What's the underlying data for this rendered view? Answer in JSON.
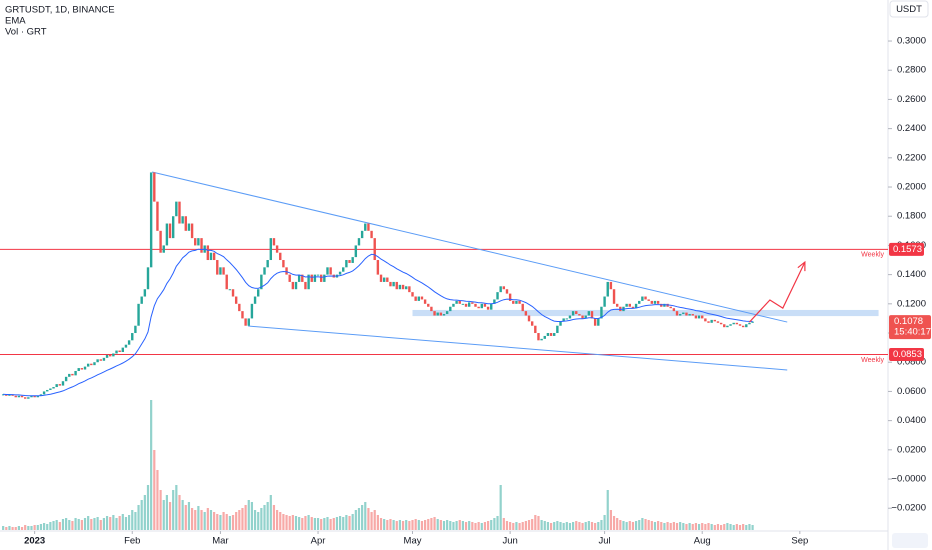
{
  "header": {
    "symbol": "GRTUSDT, 1D, BINANCE",
    "indicators": [
      "EMA",
      "Vol · GRT"
    ]
  },
  "chart_data": {
    "type": "candlestick",
    "currency": "USDT",
    "close": [
      0.058,
      0.057,
      0.058,
      0.057,
      0.056,
      0.057,
      0.056,
      0.055,
      0.056,
      0.057,
      0.056,
      0.057,
      0.058,
      0.06,
      0.061,
      0.062,
      0.063,
      0.065,
      0.064,
      0.067,
      0.07,
      0.072,
      0.071,
      0.074,
      0.076,
      0.075,
      0.077,
      0.079,
      0.078,
      0.08,
      0.082,
      0.081,
      0.083,
      0.085,
      0.084,
      0.086,
      0.088,
      0.087,
      0.09,
      0.092,
      0.095,
      0.1,
      0.105,
      0.12,
      0.125,
      0.13,
      0.145,
      0.21,
      0.19,
      0.17,
      0.155,
      0.16,
      0.175,
      0.165,
      0.18,
      0.19,
      0.175,
      0.18,
      0.17,
      0.175,
      0.165,
      0.16,
      0.165,
      0.155,
      0.16,
      0.15,
      0.155,
      0.15,
      0.14,
      0.145,
      0.14,
      0.13,
      0.13,
      0.125,
      0.12,
      0.115,
      0.11,
      0.105,
      0.11,
      0.12,
      0.125,
      0.13,
      0.14,
      0.145,
      0.15,
      0.165,
      0.16,
      0.155,
      0.15,
      0.145,
      0.14,
      0.135,
      0.13,
      0.135,
      0.14,
      0.135,
      0.13,
      0.14,
      0.135,
      0.14,
      0.14,
      0.135,
      0.14,
      0.145,
      0.14,
      0.138,
      0.14,
      0.142,
      0.145,
      0.15,
      0.148,
      0.152,
      0.16,
      0.165,
      0.17,
      0.175,
      0.17,
      0.165,
      0.15,
      0.14,
      0.135,
      0.138,
      0.135,
      0.132,
      0.135,
      0.13,
      0.133,
      0.13,
      0.132,
      0.128,
      0.125,
      0.122,
      0.125,
      0.123,
      0.12,
      0.118,
      0.115,
      0.112,
      0.114,
      0.112,
      0.113,
      0.115,
      0.118,
      0.12,
      0.122,
      0.12,
      0.12,
      0.118,
      0.121,
      0.12,
      0.118,
      0.117,
      0.12,
      0.118,
      0.116,
      0.12,
      0.123,
      0.128,
      0.132,
      0.13,
      0.127,
      0.122,
      0.12,
      0.122,
      0.12,
      0.115,
      0.112,
      0.108,
      0.105,
      0.1,
      0.095,
      0.096,
      0.098,
      0.1,
      0.098,
      0.1,
      0.105,
      0.108,
      0.11,
      0.11,
      0.112,
      0.115,
      0.113,
      0.112,
      0.11,
      0.112,
      0.115,
      0.11,
      0.105,
      0.11,
      0.118,
      0.125,
      0.135,
      0.13,
      0.12,
      0.118,
      0.115,
      0.118,
      0.12,
      0.118,
      0.117,
      0.12,
      0.122,
      0.125,
      0.123,
      0.122,
      0.12,
      0.122,
      0.12,
      0.118,
      0.12,
      0.118,
      0.117,
      0.115,
      0.112,
      0.113,
      0.114,
      0.112,
      0.113,
      0.112,
      0.11,
      0.112,
      0.11,
      0.108,
      0.107,
      0.109,
      0.108,
      0.107,
      0.106,
      0.104,
      0.105,
      0.106,
      0.107,
      0.106,
      0.105,
      0.104,
      0.106,
      0.107,
      0.1078
    ],
    "volume": [
      4,
      3,
      4,
      3,
      3,
      4,
      3,
      5,
      4,
      4,
      5,
      5,
      6,
      7,
      6,
      8,
      9,
      10,
      8,
      11,
      12,
      10,
      9,
      12,
      11,
      10,
      12,
      14,
      11,
      12,
      13,
      10,
      12,
      14,
      13,
      15,
      12,
      14,
      16,
      13,
      15,
      20,
      18,
      25,
      30,
      35,
      45,
      130,
      80,
      60,
      40,
      30,
      35,
      28,
      40,
      45,
      35,
      30,
      25,
      28,
      22,
      20,
      24,
      20,
      18,
      22,
      20,
      18,
      16,
      15,
      18,
      16,
      14,
      15,
      18,
      20,
      22,
      25,
      30,
      28,
      20,
      18,
      22,
      25,
      28,
      35,
      25,
      20,
      18,
      16,
      15,
      14,
      15,
      14,
      13,
      12,
      14,
      15,
      13,
      12,
      12,
      11,
      12,
      13,
      11,
      12,
      13,
      14,
      13,
      15,
      14,
      16,
      20,
      22,
      25,
      28,
      22,
      18,
      20,
      15,
      12,
      11,
      10,
      11,
      10,
      9,
      10,
      9,
      10,
      9,
      10,
      11,
      10,
      9,
      10,
      11,
      12,
      13,
      11,
      10,
      9,
      10,
      9,
      8,
      9,
      10,
      9,
      8,
      9,
      8,
      7,
      8,
      7,
      8,
      9,
      10,
      12,
      14,
      45,
      12,
      9,
      8,
      7,
      8,
      7,
      8,
      9,
      10,
      11,
      15,
      14,
      10,
      9,
      8,
      7,
      8,
      9,
      8,
      7,
      8,
      7,
      8,
      9,
      8,
      7,
      8,
      9,
      8,
      7,
      8,
      10,
      15,
      40,
      20,
      14,
      12,
      10,
      9,
      8,
      9,
      8,
      9,
      10,
      12,
      11,
      10,
      9,
      8,
      9,
      8,
      7,
      8,
      7,
      8,
      7,
      8,
      7,
      6,
      7,
      6,
      7,
      6,
      7,
      6,
      7,
      6,
      5,
      6,
      5,
      6,
      7,
      6,
      5,
      6,
      5,
      6,
      5,
      6,
      5
    ],
    "up_color": "#26a69a",
    "down_color": "#ef5350",
    "ema_color": "#2962ff",
    "xlim": [
      -1,
      281
    ],
    "xticks": [
      {
        "value": 10,
        "label": "2023"
      },
      {
        "value": 41,
        "label": "Feb"
      },
      {
        "value": 69,
        "label": "Mar"
      },
      {
        "value": 100,
        "label": "Apr"
      },
      {
        "value": 130,
        "label": "May"
      },
      {
        "value": 161,
        "label": "Jun"
      },
      {
        "value": 191,
        "label": "Jul"
      },
      {
        "value": 222,
        "label": "Aug"
      },
      {
        "value": 253,
        "label": "Sep"
      }
    ],
    "ylim": [
      -0.0356,
      0.3281
    ],
    "yticks": [
      {
        "value": 0.3,
        "label": "0.3000"
      },
      {
        "value": 0.28,
        "label": "0.2800"
      },
      {
        "value": 0.26,
        "label": "0.2600"
      },
      {
        "value": 0.24,
        "label": "0.2400"
      },
      {
        "value": 0.22,
        "label": "0.2200"
      },
      {
        "value": 0.2,
        "label": "0.2000"
      },
      {
        "value": 0.18,
        "label": "0.1800"
      },
      {
        "value": 0.16,
        "label": "0.1600"
      },
      {
        "value": 0.14,
        "label": "0.1400"
      },
      {
        "value": 0.12,
        "label": "0.1200"
      },
      {
        "value": 0.1,
        "label": "0.1000"
      },
      {
        "value": 0.08,
        "label": "0.0800"
      },
      {
        "value": 0.06,
        "label": "0.0600"
      },
      {
        "value": 0.04,
        "label": "0.0400"
      },
      {
        "value": 0.02,
        "label": "0.0200"
      },
      {
        "value": 0,
        "label": "−0.0000"
      },
      {
        "value": -0.02,
        "label": "−0.0200"
      }
    ],
    "vlim": [
      0,
      140
    ],
    "last_price": 0.1078,
    "countdown": "15:40:17",
    "levels": [
      {
        "value": 0.1573,
        "label": "Weekly",
        "color": "#f23645"
      },
      {
        "value": 0.0853,
        "label": "Weekly",
        "color": "#f23645"
      }
    ],
    "trendlines": [
      {
        "x": [
          47.3,
          249
        ],
        "y": [
          0.2103,
          0.1075
        ],
        "color": "#5b9cf6"
      },
      {
        "x": [
          77.8,
          249
        ],
        "y": [
          0.1048,
          0.0747
        ],
        "color": "#5b9cf6"
      }
    ],
    "zone": {
      "x": [
        130,
        278
      ],
      "y": [
        0.1116,
        0.1158
      ],
      "color": "#bbd6f5"
    },
    "arrow": {
      "x": [
        237,
        243.5,
        247.6,
        254.6
      ],
      "y": [
        0.1075,
        0.1226,
        0.1171,
        0.1486
      ],
      "color": "#f23645"
    }
  }
}
